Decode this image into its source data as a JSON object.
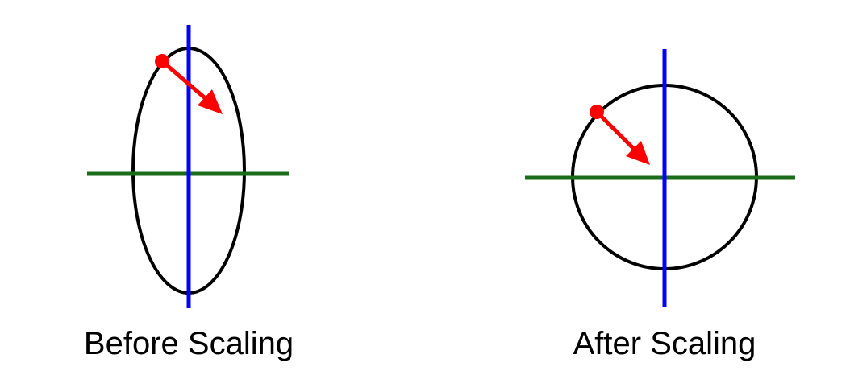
{
  "panels": [
    {
      "caption": "Before Scaling"
    },
    {
      "caption": "After Scaling"
    }
  ],
  "colors": {
    "outline": "#000000",
    "vertical_axis": "#0000ff",
    "horizontal_axis": "#1a6b1a",
    "vector": "#ff0000"
  }
}
